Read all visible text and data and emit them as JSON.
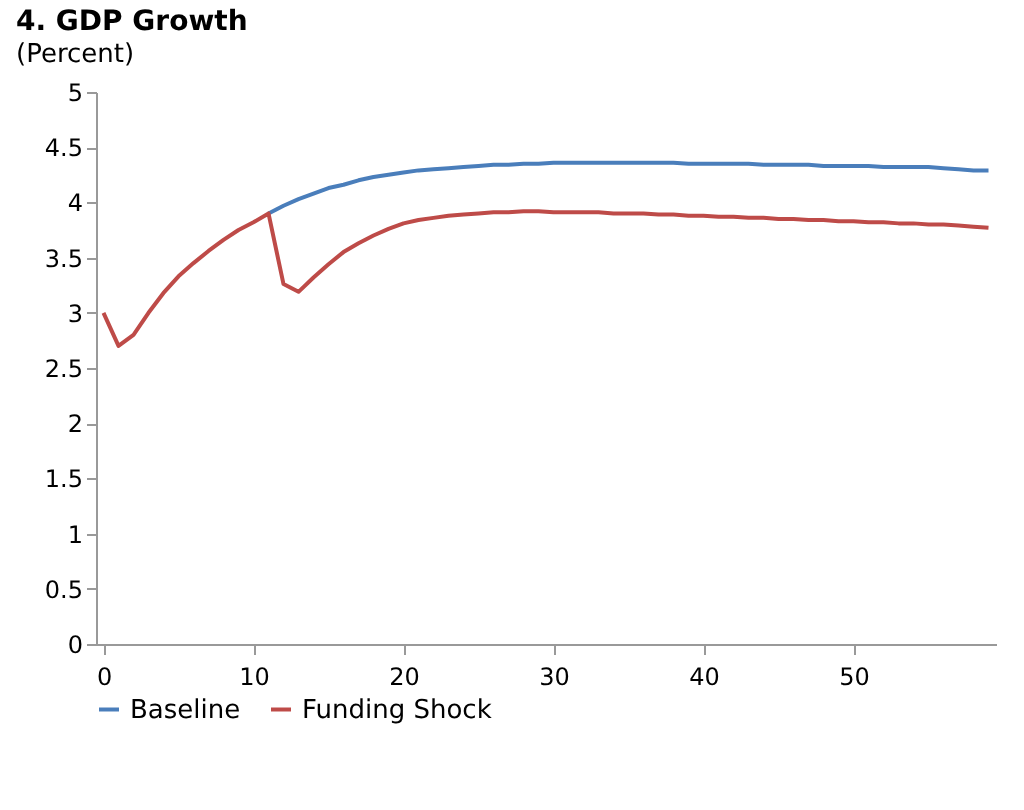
{
  "chart_data": {
    "type": "line",
    "title": "4. GDP Growth",
    "subtitle": "(Percent)",
    "x": [
      0,
      1,
      2,
      3,
      4,
      5,
      6,
      7,
      8,
      9,
      10,
      11,
      12,
      13,
      14,
      15,
      16,
      17,
      18,
      19,
      20,
      21,
      22,
      23,
      24,
      25,
      26,
      27,
      28,
      29,
      30,
      31,
      32,
      33,
      34,
      35,
      36,
      37,
      38,
      39,
      40,
      41,
      42,
      43,
      44,
      45,
      46,
      47,
      48,
      49,
      50,
      51,
      52,
      53,
      54,
      55,
      56,
      57,
      58,
      59
    ],
    "series": [
      {
        "name": "Baseline",
        "color": "#4a7ebb",
        "values": [
          null,
          null,
          null,
          null,
          null,
          null,
          null,
          null,
          null,
          null,
          null,
          3.9,
          3.97,
          4.03,
          4.08,
          4.13,
          4.16,
          4.2,
          4.23,
          4.25,
          4.27,
          4.29,
          4.3,
          4.31,
          4.32,
          4.33,
          4.34,
          4.34,
          4.35,
          4.35,
          4.36,
          4.36,
          4.36,
          4.36,
          4.36,
          4.36,
          4.36,
          4.36,
          4.36,
          4.35,
          4.35,
          4.35,
          4.35,
          4.35,
          4.34,
          4.34,
          4.34,
          4.34,
          4.33,
          4.33,
          4.33,
          4.33,
          4.32,
          4.32,
          4.32,
          4.32,
          4.31,
          4.3,
          4.29,
          4.29
        ]
      },
      {
        "name": "Funding Shock",
        "color": "#be4b48",
        "values": [
          3.0,
          2.7,
          2.8,
          3.0,
          3.18,
          3.33,
          3.45,
          3.56,
          3.66,
          3.75,
          3.82,
          3.9,
          3.26,
          3.19,
          3.32,
          3.44,
          3.55,
          3.63,
          3.7,
          3.76,
          3.81,
          3.84,
          3.86,
          3.88,
          3.89,
          3.9,
          3.91,
          3.91,
          3.92,
          3.92,
          3.91,
          3.91,
          3.91,
          3.91,
          3.9,
          3.9,
          3.9,
          3.89,
          3.89,
          3.88,
          3.88,
          3.87,
          3.87,
          3.86,
          3.86,
          3.85,
          3.85,
          3.84,
          3.84,
          3.83,
          3.83,
          3.82,
          3.82,
          3.81,
          3.81,
          3.8,
          3.8,
          3.79,
          3.78,
          3.77
        ]
      }
    ],
    "xlim": [
      -0.5,
      59.5
    ],
    "xticks": [
      0,
      10,
      20,
      30,
      40,
      50
    ],
    "ylim": [
      0,
      5
    ],
    "yticks": [
      0,
      0.5,
      1,
      1.5,
      2,
      2.5,
      3,
      3.5,
      4,
      4.5,
      5
    ],
    "grid": false,
    "legend": "bottom"
  }
}
